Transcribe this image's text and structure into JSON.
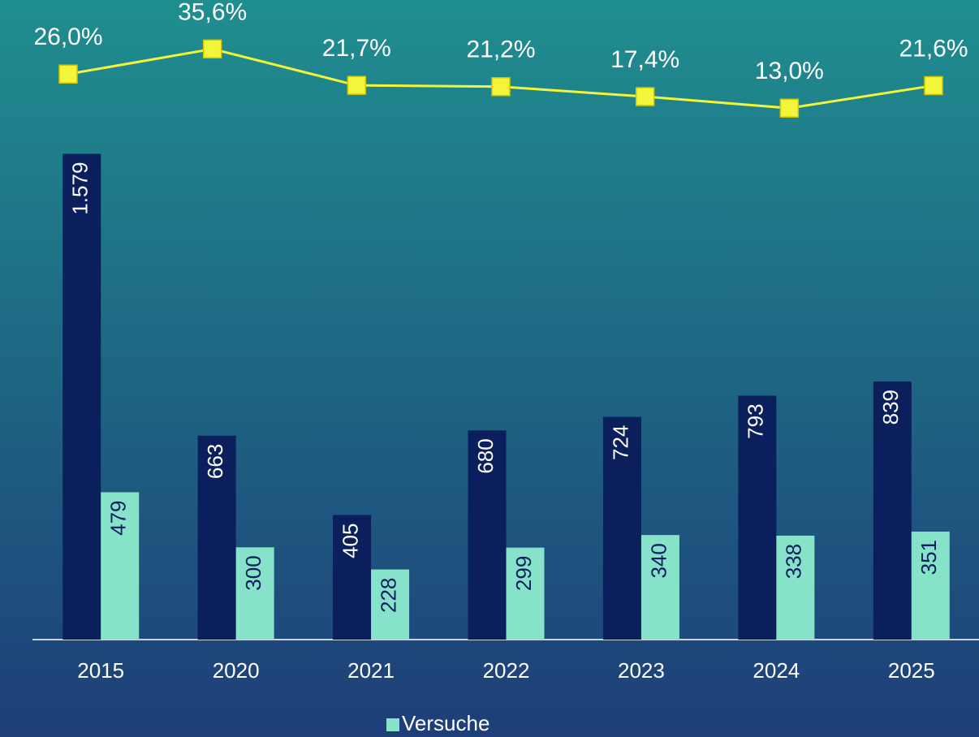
{
  "chart_data": {
    "type": "bar",
    "categories": [
      "2015",
      "2020",
      "2021",
      "2022",
      "2023",
      "2024",
      "2025"
    ],
    "series": [
      {
        "color": "#0b1f5c",
        "values": [
          1579,
          663,
          405,
          680,
          724,
          793,
          839
        ],
        "value_labels": [
          "1.579",
          "663",
          "405",
          "680",
          "724",
          "793",
          "839"
        ]
      },
      {
        "name": "Versuche",
        "color": "#86e3c9",
        "values": [
          479,
          300,
          228,
          299,
          340,
          338,
          351
        ]
      },
      {
        "type": "line",
        "axis": "y2",
        "color": "#f2f53a",
        "values": [
          26.0,
          35.6,
          21.7,
          21.2,
          17.4,
          13.0,
          21.6
        ],
        "value_labels": [
          "26,0%",
          "35,6%",
          "21,7%",
          "21,2%",
          "17,4%",
          "13,0%",
          "21,6%"
        ]
      }
    ],
    "ylim": [
      0,
      2000
    ],
    "y2lim": [
      -190,
      45
    ]
  }
}
